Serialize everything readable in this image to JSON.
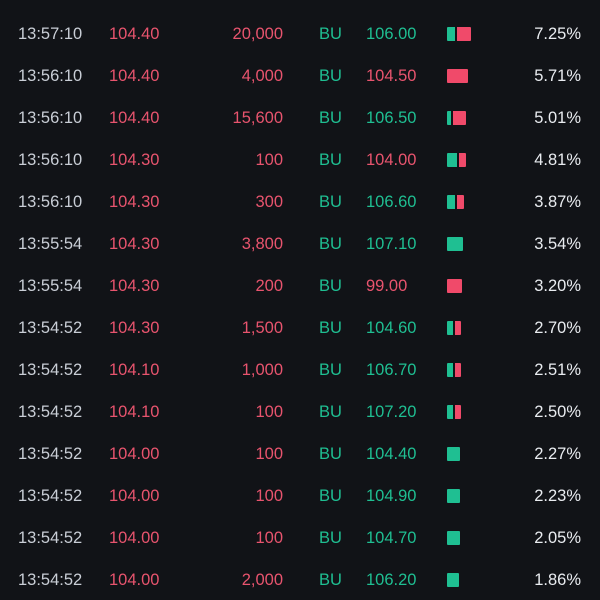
{
  "colors": {
    "background": "#111317",
    "up": "#1fbf92",
    "down": "#e8546e",
    "text": "#e9ecf0"
  },
  "trades": [
    {
      "time": "13:57:10",
      "price": "104.40",
      "volume": "20,000",
      "code": "BU",
      "ref": "106.00",
      "ref_dir": "up",
      "buy_frac": 0.35,
      "sell_frac": 0.65,
      "pct": "7.25%",
      "pct_value": 7.25
    },
    {
      "time": "13:56:10",
      "price": "104.40",
      "volume": "4,000",
      "code": "BU",
      "ref": "104.50",
      "ref_dir": "down",
      "buy_frac": 0.0,
      "sell_frac": 1.0,
      "pct": "5.71%",
      "pct_value": 5.71
    },
    {
      "time": "13:56:10",
      "price": "104.40",
      "volume": "15,600",
      "code": "BU",
      "ref": "106.50",
      "ref_dir": "up",
      "buy_frac": 0.25,
      "sell_frac": 0.75,
      "pct": "5.01%",
      "pct_value": 5.01
    },
    {
      "time": "13:56:10",
      "price": "104.30",
      "volume": "100",
      "code": "BU",
      "ref": "104.00",
      "ref_dir": "down",
      "buy_frac": 0.6,
      "sell_frac": 0.4,
      "pct": "4.81%",
      "pct_value": 4.81
    },
    {
      "time": "13:56:10",
      "price": "104.30",
      "volume": "300",
      "code": "BU",
      "ref": "106.60",
      "ref_dir": "up",
      "buy_frac": 0.55,
      "sell_frac": 0.45,
      "pct": "3.87%",
      "pct_value": 3.87
    },
    {
      "time": "13:55:54",
      "price": "104.30",
      "volume": "3,800",
      "code": "BU",
      "ref": "107.10",
      "ref_dir": "up",
      "buy_frac": 1.0,
      "sell_frac": 0.0,
      "pct": "3.54%",
      "pct_value": 3.54
    },
    {
      "time": "13:55:54",
      "price": "104.30",
      "volume": "200",
      "code": "BU",
      "ref": "99.00",
      "ref_dir": "down",
      "buy_frac": 0.0,
      "sell_frac": 1.0,
      "pct": "3.20%",
      "pct_value": 3.2
    },
    {
      "time": "13:54:52",
      "price": "104.30",
      "volume": "1,500",
      "code": "BU",
      "ref": "104.60",
      "ref_dir": "up",
      "buy_frac": 0.5,
      "sell_frac": 0.5,
      "pct": "2.70%",
      "pct_value": 2.7
    },
    {
      "time": "13:54:52",
      "price": "104.10",
      "volume": "1,000",
      "code": "BU",
      "ref": "106.70",
      "ref_dir": "up",
      "buy_frac": 0.5,
      "sell_frac": 0.5,
      "pct": "2.51%",
      "pct_value": 2.51
    },
    {
      "time": "13:54:52",
      "price": "104.10",
      "volume": "100",
      "code": "BU",
      "ref": "107.20",
      "ref_dir": "up",
      "buy_frac": 0.5,
      "sell_frac": 0.5,
      "pct": "2.50%",
      "pct_value": 2.5
    },
    {
      "time": "13:54:52",
      "price": "104.00",
      "volume": "100",
      "code": "BU",
      "ref": "104.40",
      "ref_dir": "up",
      "buy_frac": 1.0,
      "sell_frac": 0.0,
      "pct": "2.27%",
      "pct_value": 2.27
    },
    {
      "time": "13:54:52",
      "price": "104.00",
      "volume": "100",
      "code": "BU",
      "ref": "104.90",
      "ref_dir": "up",
      "buy_frac": 1.0,
      "sell_frac": 0.0,
      "pct": "2.23%",
      "pct_value": 2.23
    },
    {
      "time": "13:54:52",
      "price": "104.00",
      "volume": "100",
      "code": "BU",
      "ref": "104.70",
      "ref_dir": "up",
      "buy_frac": 1.0,
      "sell_frac": 0.0,
      "pct": "2.05%",
      "pct_value": 2.05
    },
    {
      "time": "13:54:52",
      "price": "104.00",
      "volume": "2,000",
      "code": "BU",
      "ref": "106.20",
      "ref_dir": "up",
      "buy_frac": 1.0,
      "sell_frac": 0.0,
      "pct": "1.86%",
      "pct_value": 1.86
    }
  ]
}
